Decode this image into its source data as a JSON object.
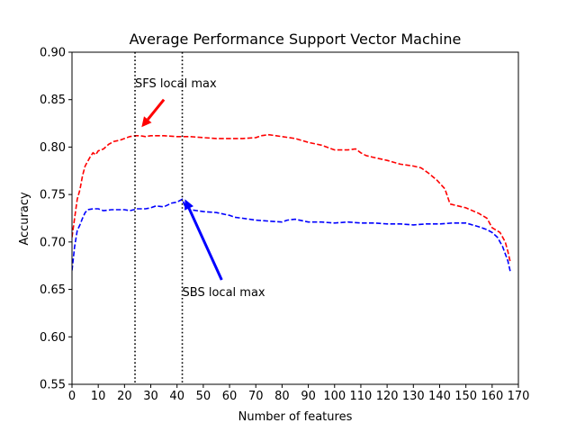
{
  "chart_data": {
    "type": "line",
    "title": "Average Performance Support Vector Machine",
    "xlabel": "Number of features",
    "ylabel": "Accuracy",
    "xlim": [
      0,
      170
    ],
    "ylim": [
      0.55,
      0.9
    ],
    "xticks": [
      0,
      10,
      20,
      30,
      40,
      50,
      60,
      70,
      80,
      90,
      100,
      110,
      120,
      130,
      140,
      150,
      160,
      170
    ],
    "yticks": [
      "0.55",
      "0.60",
      "0.65",
      "0.70",
      "0.75",
      "0.80",
      "0.85",
      "0.90"
    ],
    "grid": false,
    "series": [
      {
        "color": "#ff0000",
        "style": "dashed",
        "points": [
          [
            0,
            0.705
          ],
          [
            1,
            0.725
          ],
          [
            2,
            0.745
          ],
          [
            3,
            0.755
          ],
          [
            4,
            0.77
          ],
          [
            5,
            0.78
          ],
          [
            6,
            0.785
          ],
          [
            7,
            0.79
          ],
          [
            8,
            0.794
          ],
          [
            9,
            0.792
          ],
          [
            10,
            0.796
          ],
          [
            12,
            0.798
          ],
          [
            14,
            0.803
          ],
          [
            16,
            0.806
          ],
          [
            18,
            0.807
          ],
          [
            20,
            0.809
          ],
          [
            22,
            0.811
          ],
          [
            24,
            0.812
          ],
          [
            26,
            0.812
          ],
          [
            28,
            0.811
          ],
          [
            30,
            0.812
          ],
          [
            35,
            0.812
          ],
          [
            40,
            0.811
          ],
          [
            45,
            0.811
          ],
          [
            50,
            0.81
          ],
          [
            55,
            0.809
          ],
          [
            60,
            0.809
          ],
          [
            65,
            0.809
          ],
          [
            70,
            0.81
          ],
          [
            72,
            0.812
          ],
          [
            75,
            0.813
          ],
          [
            80,
            0.811
          ],
          [
            85,
            0.809
          ],
          [
            90,
            0.805
          ],
          [
            95,
            0.802
          ],
          [
            100,
            0.797
          ],
          [
            105,
            0.797
          ],
          [
            108,
            0.798
          ],
          [
            110,
            0.794
          ],
          [
            112,
            0.791
          ],
          [
            115,
            0.789
          ],
          [
            120,
            0.786
          ],
          [
            125,
            0.782
          ],
          [
            130,
            0.78
          ],
          [
            133,
            0.778
          ],
          [
            136,
            0.772
          ],
          [
            139,
            0.765
          ],
          [
            142,
            0.756
          ],
          [
            144,
            0.74
          ],
          [
            147,
            0.738
          ],
          [
            150,
            0.736
          ],
          [
            155,
            0.73
          ],
          [
            158,
            0.725
          ],
          [
            160,
            0.715
          ],
          [
            163,
            0.71
          ],
          [
            165,
            0.7
          ],
          [
            166,
            0.69
          ],
          [
            167,
            0.678
          ]
        ]
      },
      {
        "color": "#0000ff",
        "style": "dashed",
        "points": [
          [
            0,
            0.67
          ],
          [
            1,
            0.695
          ],
          [
            2,
            0.712
          ],
          [
            3,
            0.718
          ],
          [
            4,
            0.725
          ],
          [
            5,
            0.731
          ],
          [
            6,
            0.734
          ],
          [
            8,
            0.735
          ],
          [
            10,
            0.735
          ],
          [
            12,
            0.733
          ],
          [
            15,
            0.734
          ],
          [
            20,
            0.734
          ],
          [
            22,
            0.733
          ],
          [
            25,
            0.735
          ],
          [
            28,
            0.735
          ],
          [
            30,
            0.736
          ],
          [
            32,
            0.738
          ],
          [
            35,
            0.737
          ],
          [
            38,
            0.741
          ],
          [
            40,
            0.742
          ],
          [
            42,
            0.745
          ],
          [
            43,
            0.738
          ],
          [
            45,
            0.734
          ],
          [
            50,
            0.732
          ],
          [
            55,
            0.731
          ],
          [
            60,
            0.728
          ],
          [
            62,
            0.726
          ],
          [
            65,
            0.725
          ],
          [
            70,
            0.723
          ],
          [
            75,
            0.722
          ],
          [
            80,
            0.721
          ],
          [
            82,
            0.723
          ],
          [
            85,
            0.724
          ],
          [
            90,
            0.721
          ],
          [
            95,
            0.721
          ],
          [
            100,
            0.72
          ],
          [
            105,
            0.721
          ],
          [
            110,
            0.72
          ],
          [
            115,
            0.72
          ],
          [
            120,
            0.719
          ],
          [
            125,
            0.719
          ],
          [
            130,
            0.718
          ],
          [
            135,
            0.719
          ],
          [
            140,
            0.719
          ],
          [
            145,
            0.72
          ],
          [
            150,
            0.72
          ],
          [
            155,
            0.716
          ],
          [
            158,
            0.713
          ],
          [
            160,
            0.71
          ],
          [
            162,
            0.705
          ],
          [
            164,
            0.695
          ],
          [
            166,
            0.68
          ],
          [
            167,
            0.668
          ]
        ]
      }
    ],
    "vlines": [
      24,
      42
    ],
    "annotations": [
      {
        "text": "SFS local max",
        "x": 24,
        "y": 0.863,
        "arrow_from": [
          35,
          0.85
        ],
        "arrow_to": [
          26.5,
          0.821
        ],
        "color": "#ff0000"
      },
      {
        "text": "SBS local max",
        "x": 42,
        "y": 0.643,
        "arrow_from": [
          57,
          0.66
        ],
        "arrow_to": [
          43,
          0.745
        ],
        "color": "#0000ff"
      }
    ]
  }
}
